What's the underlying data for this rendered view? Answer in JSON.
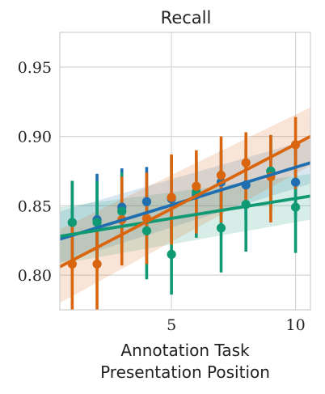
{
  "chart_data": {
    "type": "scatter",
    "title": "Recall",
    "xlabel": [
      "Annotation Task",
      "Presentation Position"
    ],
    "ylabel": "",
    "xlim": [
      0.5,
      10.6
    ],
    "ylim": [
      0.775,
      0.975
    ],
    "x_ticks": [
      5,
      10
    ],
    "y_ticks": [
      0.8,
      0.85,
      0.9,
      0.95
    ],
    "y_tick_labels": [
      "0.80",
      "0.85",
      "0.90",
      "0.95"
    ],
    "grid": true,
    "series": [
      {
        "color": "#1f6fb0",
        "points": [
          {
            "x": 1,
            "y": 0.838,
            "lo": 0.808,
            "hi": 0.868
          },
          {
            "x": 2,
            "y": 0.84,
            "lo": 0.808,
            "hi": 0.873
          },
          {
            "x": 3,
            "y": 0.849,
            "lo": 0.822,
            "hi": 0.877
          },
          {
            "x": 4,
            "y": 0.853,
            "lo": 0.826,
            "hi": 0.878
          },
          {
            "x": 5,
            "y": 0.855,
            "lo": 0.828,
            "hi": 0.886
          },
          {
            "x": 6,
            "y": 0.858,
            "lo": 0.832,
            "hi": 0.884
          },
          {
            "x": 7,
            "y": 0.867,
            "lo": 0.842,
            "hi": 0.89
          },
          {
            "x": 8,
            "y": 0.865,
            "lo": 0.84,
            "hi": 0.89
          },
          {
            "x": 9,
            "y": 0.875,
            "lo": 0.852,
            "hi": 0.898
          },
          {
            "x": 10,
            "y": 0.867,
            "lo": 0.842,
            "hi": 0.892
          }
        ],
        "trend": {
          "x0": 0.5,
          "y0": 0.826,
          "x1": 10.6,
          "y1": 0.881
        },
        "band": {
          "lo0": 0.809,
          "hi0": 0.846,
          "lo1": 0.866,
          "hi1": 0.898
        }
      },
      {
        "color": "#0f9a74",
        "points": [
          {
            "x": 1,
            "y": 0.838,
            "lo": 0.806,
            "hi": 0.868
          },
          {
            "x": 2,
            "y": 0.838,
            "lo": 0.806,
            "hi": 0.868
          },
          {
            "x": 3,
            "y": 0.846,
            "lo": 0.818,
            "hi": 0.874
          },
          {
            "x": 4,
            "y": 0.832,
            "lo": 0.797,
            "hi": 0.862
          },
          {
            "x": 5,
            "y": 0.815,
            "lo": 0.786,
            "hi": 0.845
          },
          {
            "x": 6,
            "y": 0.86,
            "lo": 0.827,
            "hi": 0.882
          },
          {
            "x": 7,
            "y": 0.834,
            "lo": 0.802,
            "hi": 0.862
          },
          {
            "x": 8,
            "y": 0.851,
            "lo": 0.817,
            "hi": 0.882
          },
          {
            "x": 9,
            "y": 0.875,
            "lo": 0.846,
            "hi": 0.901
          },
          {
            "x": 10,
            "y": 0.849,
            "lo": 0.816,
            "hi": 0.881
          }
        ],
        "trend": {
          "x0": 0.5,
          "y0": 0.828,
          "x1": 10.6,
          "y1": 0.857
        },
        "band": {
          "lo0": 0.808,
          "hi0": 0.849,
          "lo1": 0.84,
          "hi1": 0.873
        }
      },
      {
        "color": "#d9650f",
        "points": [
          {
            "x": 1,
            "y": 0.808,
            "lo": 0.775,
            "hi": 0.838
          },
          {
            "x": 2,
            "y": 0.808,
            "lo": 0.775,
            "hi": 0.838
          },
          {
            "x": 3,
            "y": 0.84,
            "lo": 0.807,
            "hi": 0.871
          },
          {
            "x": 4,
            "y": 0.841,
            "lo": 0.808,
            "hi": 0.874
          },
          {
            "x": 5,
            "y": 0.856,
            "lo": 0.822,
            "hi": 0.887
          },
          {
            "x": 6,
            "y": 0.864,
            "lo": 0.83,
            "hi": 0.89
          },
          {
            "x": 7,
            "y": 0.872,
            "lo": 0.838,
            "hi": 0.9
          },
          {
            "x": 8,
            "y": 0.881,
            "lo": 0.848,
            "hi": 0.903
          },
          {
            "x": 9,
            "y": 0.871,
            "lo": 0.838,
            "hi": 0.901
          },
          {
            "x": 10,
            "y": 0.894,
            "lo": 0.862,
            "hi": 0.914
          }
        ],
        "trend": {
          "x0": 0.5,
          "y0": 0.806,
          "x1": 10.6,
          "y1": 0.9
        },
        "band": {
          "lo0": 0.78,
          "hi0": 0.833,
          "lo1": 0.879,
          "hi1": 0.921
        }
      }
    ]
  }
}
